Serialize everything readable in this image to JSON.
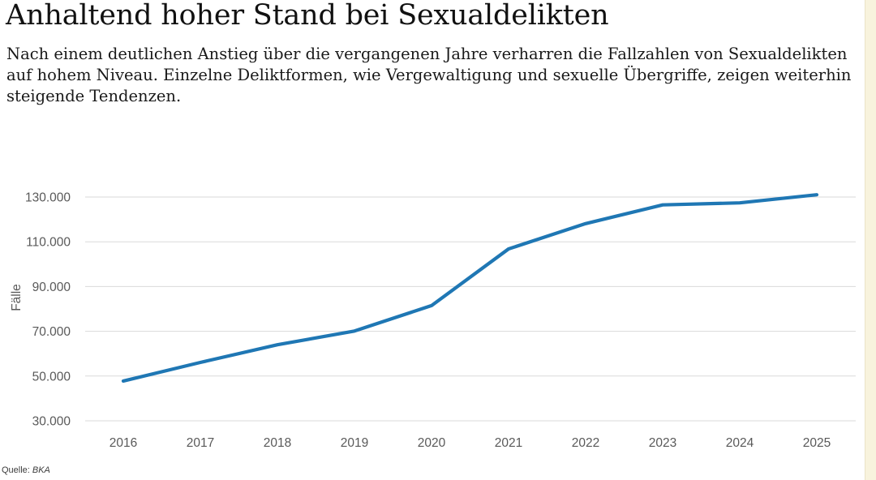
{
  "page": {
    "title": "Anhaltend hoher Stand bei Sexualdelikten",
    "description": "Nach einem deutlichen Anstieg über die vergangenen Jahre verharren die Fallzahlen von Sexualdelikten auf hohem Niveau. Einzelne Deliktformen, wie Vergewaltigung und sexuelle Übergriffe, zeigen weiterhin steigende Tendenzen.",
    "source_label": "Quelle:",
    "source_value": "BKA"
  },
  "colors": {
    "line": "#1f77b4",
    "grid": "#d9d9d9",
    "axis_text": "#595959",
    "title_text": "#111111",
    "side_strip_bg": "#f8f3dd",
    "side_strip_border": "#eae3c8"
  },
  "chart_data": {
    "type": "line",
    "title": "Anhaltend hoher Stand bei Sexualdelikten",
    "xlabel": "",
    "ylabel": "Fälle",
    "x": [
      2016,
      2017,
      2018,
      2019,
      2020,
      2021,
      2022,
      2023,
      2024,
      2025
    ],
    "values": [
      47800,
      56100,
      64000,
      70100,
      81500,
      106800,
      118100,
      126500,
      127400,
      131000
    ],
    "series_name": "Fallzahlen von Sexualdelikten",
    "yticks": [
      30000,
      50000,
      70000,
      90000,
      110000,
      130000
    ],
    "ytick_labels": [
      "30.000",
      "50.000",
      "70.000",
      "90.000",
      "110.000",
      "130.000"
    ],
    "ylim": [
      30000,
      132000
    ],
    "xlim": [
      2016,
      2025
    ],
    "grid": true,
    "legend": false,
    "source": "BKA"
  }
}
